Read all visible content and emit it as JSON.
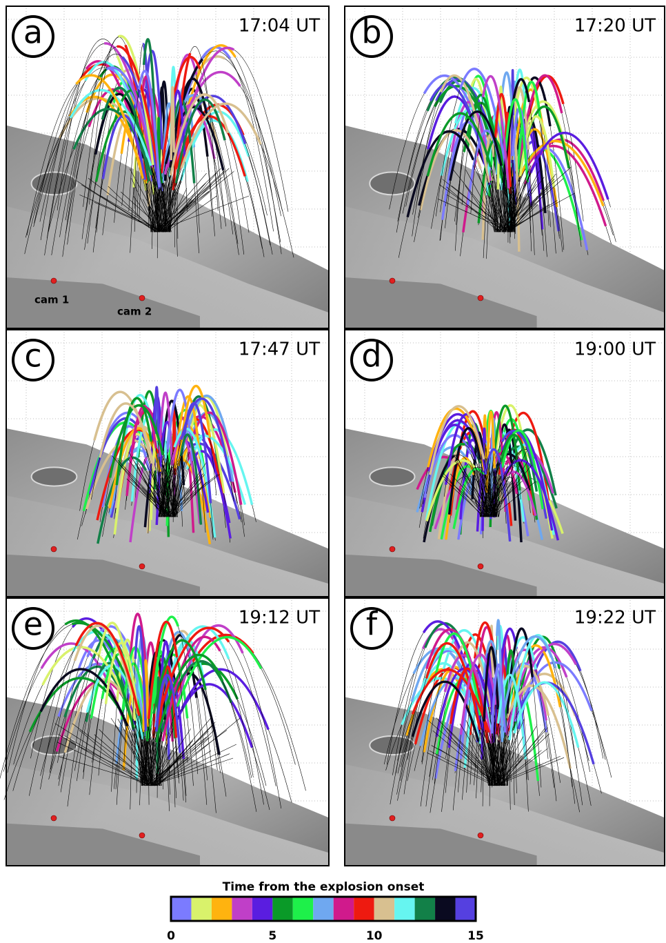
{
  "panels": [
    {
      "letter": "a",
      "time": "17:04 UT"
    },
    {
      "letter": "b",
      "time": "17:20 UT"
    },
    {
      "letter": "c",
      "time": "17:47 UT"
    },
    {
      "letter": "d",
      "time": "19:00 UT"
    },
    {
      "letter": "e",
      "time": "19:12 UT"
    },
    {
      "letter": "f",
      "time": "19:22 UT"
    }
  ],
  "camera_labels": [
    "cam 1",
    "cam 2"
  ],
  "colorbar": {
    "title": "Time from the explosion onset",
    "lim": [
      0,
      15
    ],
    "ticks": [
      0,
      5,
      10,
      15
    ],
    "colors": [
      "#7b7bff",
      "#d9f26b",
      "#ffb30f",
      "#c03fc8",
      "#5a1de0",
      "#0a9a28",
      "#1ef04a",
      "#6fa8f0",
      "#d01a8c",
      "#ee1a10",
      "#d8c090",
      "#66f5f0",
      "#128048",
      "#0a0a20",
      "#5540e0"
    ]
  }
}
